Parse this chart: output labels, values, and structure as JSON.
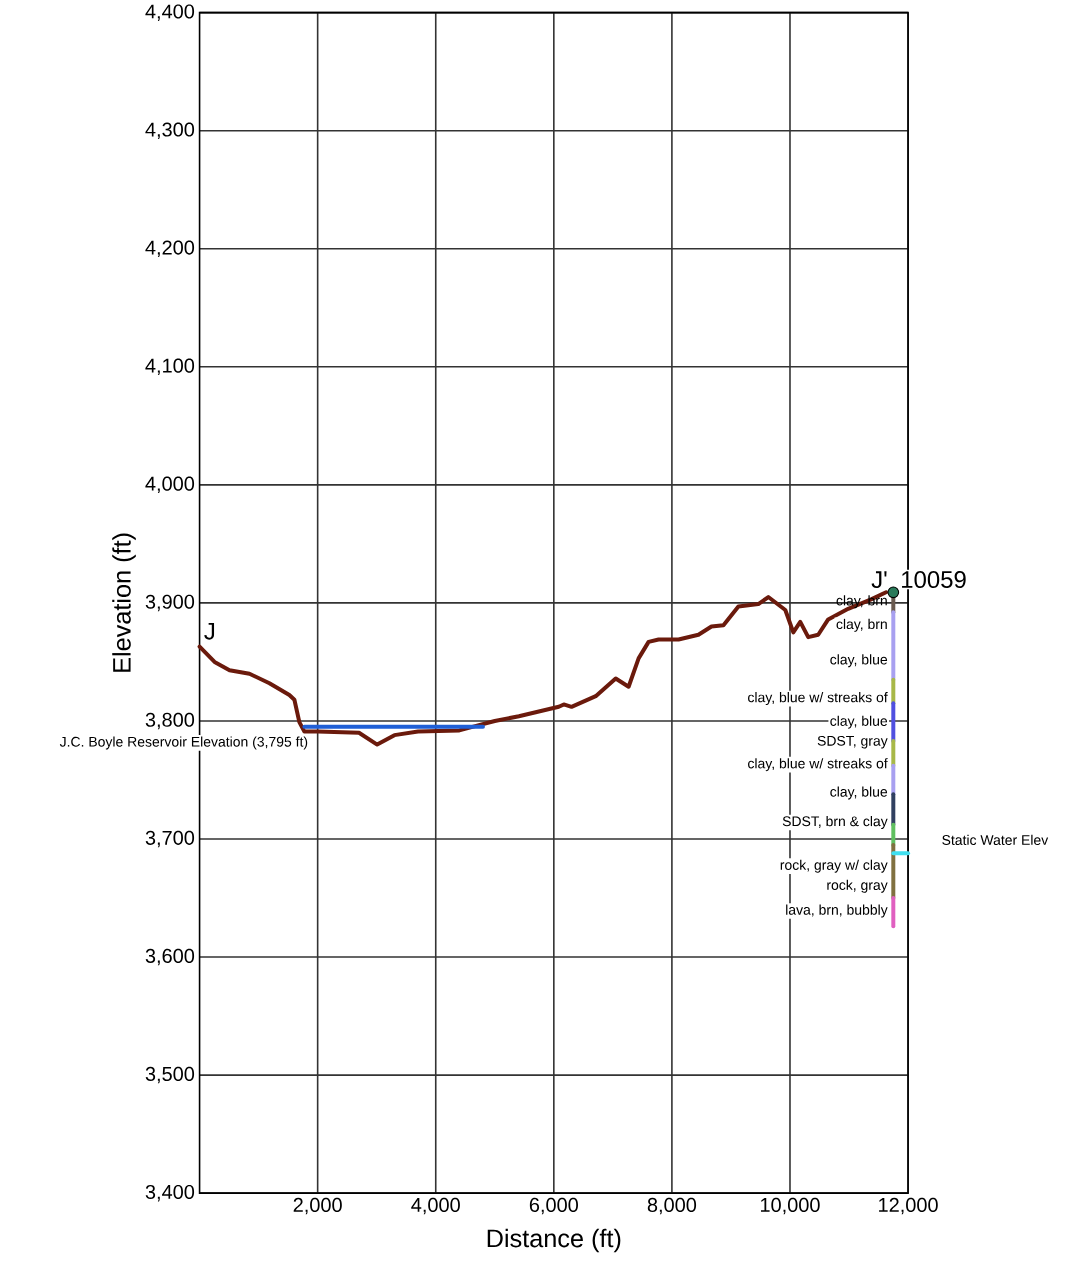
{
  "chart_data": {
    "type": "line",
    "xlabel": "Distance (ft)",
    "ylabel": "Elevation (ft)",
    "xlim": [
      0,
      12000
    ],
    "ylim": [
      3400,
      4400
    ],
    "xticks": [
      {
        "value": 2000,
        "label": "2,000"
      },
      {
        "value": 4000,
        "label": "4,000"
      },
      {
        "value": 6000,
        "label": "6,000"
      },
      {
        "value": 8000,
        "label": "8,000"
      },
      {
        "value": 10000,
        "label": "10,000"
      },
      {
        "value": 12000,
        "label": "12,000"
      }
    ],
    "yticks": [
      {
        "value": 3400,
        "label": "3,400"
      },
      {
        "value": 3500,
        "label": "3,500"
      },
      {
        "value": 3600,
        "label": "3,600"
      },
      {
        "value": 3700,
        "label": "3,700"
      },
      {
        "value": 3800,
        "label": "3,800"
      },
      {
        "value": 3900,
        "label": "3,900"
      },
      {
        "value": 4000,
        "label": "4,000"
      },
      {
        "value": 4100,
        "label": "4,100"
      },
      {
        "value": 4200,
        "label": "4,200"
      },
      {
        "value": 4300,
        "label": "4,300"
      },
      {
        "value": 4400,
        "label": "4,400"
      }
    ],
    "grid": true,
    "line_style": "solid",
    "series": [
      {
        "color": "#6b1a0c",
        "x": [
          0,
          254,
          507,
          845,
          1183,
          1521,
          1606,
          1690,
          1775,
          2000,
          2700,
          3008,
          3300,
          3700,
          4400,
          4700,
          5000,
          5408,
          6084,
          6169,
          6300,
          6710,
          7048,
          7267,
          7436,
          7605,
          7774,
          8112,
          8450,
          8670,
          8873,
          9126,
          9464,
          9633,
          9921,
          10056,
          10174,
          10309,
          10478,
          10647,
          10985,
          11374,
          11627
        ],
        "values": [
          3863,
          3850,
          3843,
          3840,
          3832,
          3822,
          3818,
          3799,
          3791,
          3791,
          3790,
          3780,
          3788,
          3791,
          3792,
          3796,
          3800,
          3804,
          3812,
          3814,
          3812,
          3821,
          3836,
          3829,
          3853,
          3867,
          3869,
          3869,
          3873,
          3880,
          3881,
          3897,
          3899,
          3905,
          3894,
          3875,
          3884,
          3871,
          3873,
          3886,
          3895,
          3903,
          3909
        ]
      },
      {
        "color": "#1f5fd6",
        "x": [
          1775,
          4800
        ],
        "values": [
          3795,
          3795
        ]
      },
      {
        "color": "#6a5a50",
        "x": [
          11750,
          11750
        ],
        "values": [
          3909,
          3892
        ]
      },
      {
        "color": "#a8a0f0",
        "x": [
          11750,
          11750
        ],
        "values": [
          3892,
          3835
        ]
      },
      {
        "color": "#a8b848",
        "x": [
          11750,
          11750
        ],
        "values": [
          3835,
          3815
        ]
      },
      {
        "color": "#5050e0",
        "x": [
          11750,
          11750
        ],
        "values": [
          3815,
          3783
        ]
      },
      {
        "color": "#a8b848",
        "x": [
          11750,
          11750
        ],
        "values": [
          3783,
          3762
        ]
      },
      {
        "color": "#a8a0f0",
        "x": [
          11750,
          11750
        ],
        "values": [
          3762,
          3738
        ]
      },
      {
        "color": "#304060",
        "x": [
          11750,
          11750
        ],
        "values": [
          3738,
          3712
        ]
      },
      {
        "color": "#60c060",
        "x": [
          11750,
          11750
        ],
        "values": [
          3712,
          3695
        ]
      },
      {
        "color": "#807040",
        "x": [
          11750,
          11750
        ],
        "values": [
          3695,
          3650
        ]
      },
      {
        "color": "#e060c0",
        "x": [
          11750,
          11750
        ],
        "values": [
          3650,
          3626
        ]
      },
      {
        "color": "#40e0f0",
        "x": [
          11750,
          12000
        ],
        "values": [
          3688,
          3688
        ]
      },
      {
        "type": "scatter",
        "color": "#2a7a5a",
        "x": [
          11750
        ],
        "values": [
          3909
        ]
      }
    ],
    "annotations": [
      {
        "text": "J",
        "x": 0,
        "y": 3863
      },
      {
        "text": "J'",
        "x": 11750,
        "y": 3909
      },
      {
        "text": "10059",
        "x": 11750,
        "y": 3909
      },
      {
        "text": "J.C. Boyle Reservoir Elevation (3,795 ft)",
        "x": 1775,
        "y": 3795
      },
      {
        "text": "clay, brn",
        "x": 11750,
        "y": 3901
      },
      {
        "text": "clay, brn",
        "x": 11750,
        "y": 3881
      },
      {
        "text": "clay, blue",
        "x": 11750,
        "y": 3851
      },
      {
        "text": "clay, blue w/ streaks of",
        "x": 11750,
        "y": 3819
      },
      {
        "text": "clay, blue",
        "x": 11750,
        "y": 3799
      },
      {
        "text": "SDST, gray",
        "x": 11750,
        "y": 3782
      },
      {
        "text": "clay, blue w/ streaks of",
        "x": 11750,
        "y": 3763
      },
      {
        "text": "clay, blue",
        "x": 11750,
        "y": 3739
      },
      {
        "text": "SDST, brn & clay",
        "x": 11750,
        "y": 3714
      },
      {
        "text": "Static Water Elev",
        "x": 12000,
        "y": 3688
      },
      {
        "text": "rock, gray w/ clay",
        "x": 11750,
        "y": 3677
      },
      {
        "text": "rock, gray",
        "x": 11750,
        "y": 3660
      },
      {
        "text": "lava, brn, bubbly",
        "x": 11750,
        "y": 3639
      }
    ]
  }
}
